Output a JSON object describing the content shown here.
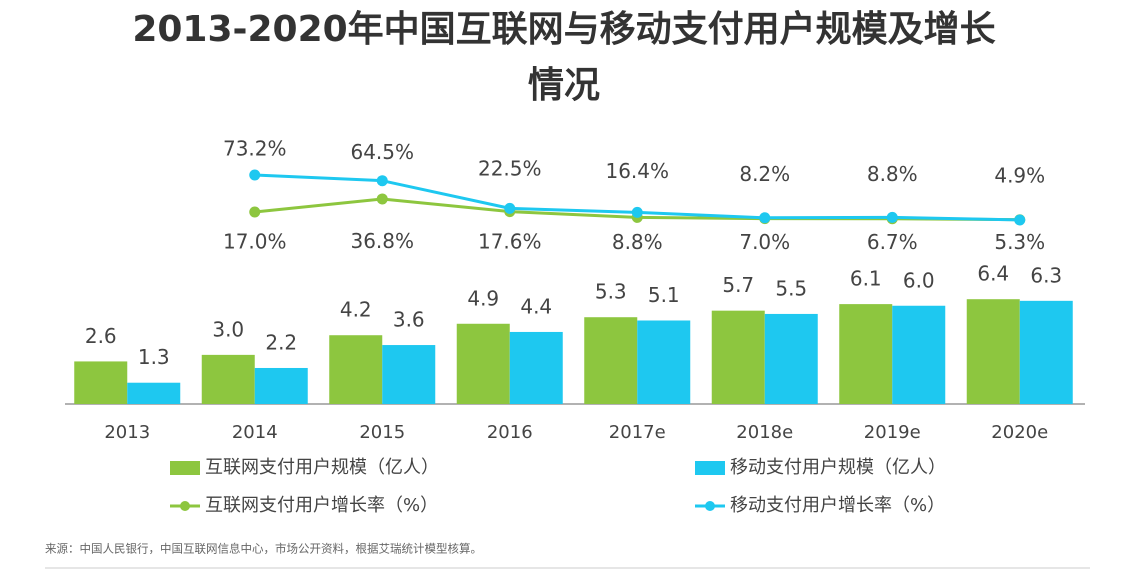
{
  "chart_data": {
    "type": "bar-line",
    "title": "2013-2020年中国互联网与移动支付用户规模及增长情况",
    "categories": [
      "2013",
      "2014",
      "2015",
      "2016",
      "2017e",
      "2018e",
      "2019e",
      "2020e"
    ],
    "ylim": [
      0,
      8
    ],
    "y2lim": [
      0,
      100
    ],
    "series": [
      {
        "name": "互联网支付用户规模（亿人）",
        "type": "bar",
        "color": "#8dc63f",
        "values": [
          2.6,
          3.0,
          4.2,
          4.9,
          5.3,
          5.7,
          6.1,
          6.4
        ],
        "value_labels": [
          "2.6",
          "3.0",
          "4.2",
          "4.9",
          "5.3",
          "5.7",
          "6.1",
          "6.4"
        ]
      },
      {
        "name": "移动支付用户规模（亿人）",
        "type": "bar",
        "color": "#1ec8f0",
        "values": [
          1.3,
          2.2,
          3.6,
          4.4,
          5.1,
          5.5,
          6.0,
          6.3
        ],
        "value_labels": [
          "1.3",
          "2.2",
          "3.6",
          "4.4",
          "5.1",
          "5.5",
          "6.0",
          "6.3"
        ]
      },
      {
        "name": "互联网支付用户增长率（%）",
        "type": "line",
        "axis": "y2",
        "color": "#8dc63f",
        "values": [
          null,
          17.0,
          36.8,
          17.6,
          8.8,
          7.0,
          6.7,
          5.3
        ],
        "value_labels": [
          null,
          "17.0%",
          "36.8%",
          "17.6%",
          "8.8%",
          "7.0%",
          "6.7%",
          "5.3%"
        ]
      },
      {
        "name": "移动支付用户增长率（%）",
        "type": "line",
        "axis": "y2",
        "color": "#1ec8f0",
        "values": [
          null,
          73.2,
          64.5,
          22.5,
          16.4,
          8.2,
          8.8,
          4.9
        ],
        "value_labels": [
          null,
          "73.2%",
          "64.5%",
          "22.5%",
          "16.4%",
          "8.2%",
          "8.8%",
          "4.9%"
        ]
      }
    ],
    "source": "来源：中国人民银行，中国互联网信息中心，市场公开资料，根据艾瑞统计模型核算。"
  }
}
